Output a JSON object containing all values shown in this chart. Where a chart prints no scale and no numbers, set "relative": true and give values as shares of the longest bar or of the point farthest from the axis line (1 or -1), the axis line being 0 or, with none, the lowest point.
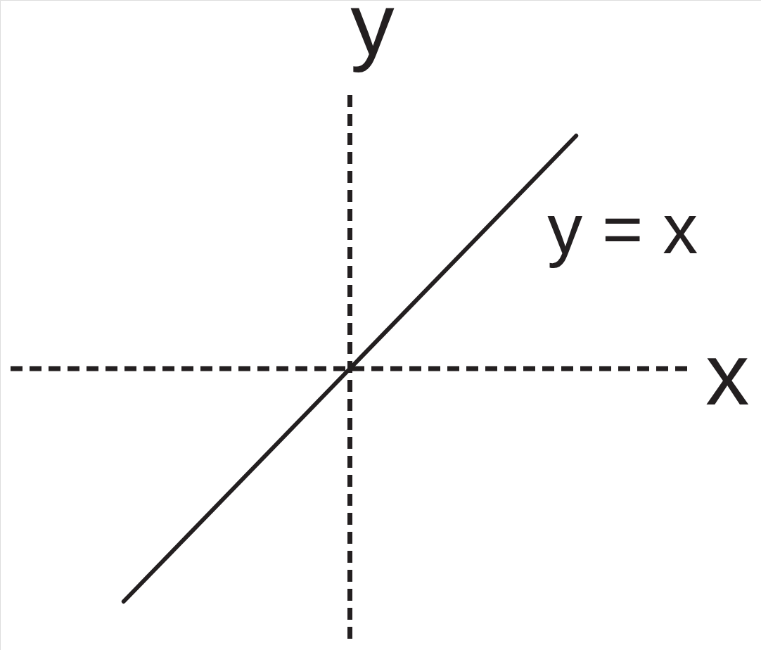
{
  "chart_data": {
    "type": "line",
    "xlabel": "x",
    "ylabel": "y",
    "categories": [
      null,
      null,
      null,
      null,
      null,
      null,
      null
    ],
    "relative": true,
    "line_style": "solid",
    "series": [
      {
        "name": "y = x",
        "color": "#231f20",
        "values": [
          null,
          -1,
          -0.5,
          0,
          0.5,
          1,
          null
        ]
      }
    ]
  }
}
